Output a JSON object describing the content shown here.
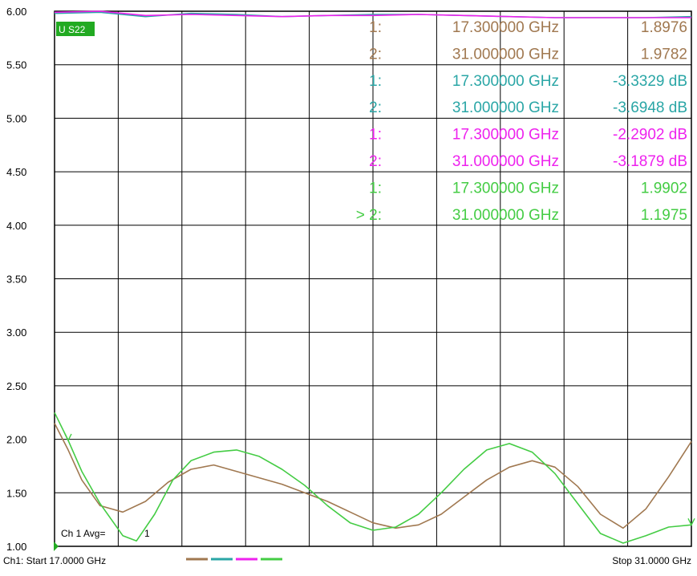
{
  "chart_data": {
    "type": "line",
    "title": "",
    "xlabel": "",
    "ylabel": "",
    "x_unit": "GHz",
    "xlim": [
      17.0,
      31.0
    ],
    "ylim": [
      1.0,
      6.0
    ],
    "grid": true,
    "ytick_labels": [
      "1.00",
      "1.50",
      "2.00",
      "2.50",
      "3.00",
      "3.50",
      "4.00",
      "4.50",
      "5.00",
      "5.50",
      "6.00"
    ],
    "trace_label": "U S22",
    "series": [
      {
        "color": "#a07850",
        "x": [
          17.0,
          17.3,
          17.6,
          18.0,
          18.5,
          19.0,
          19.5,
          20.0,
          20.5,
          21.0,
          21.5,
          22.0,
          22.5,
          23.0,
          23.5,
          24.0,
          24.5,
          25.0,
          25.5,
          26.0,
          26.5,
          27.0,
          27.5,
          28.0,
          28.5,
          29.0,
          29.5,
          30.0,
          30.5,
          31.0
        ],
        "y": [
          2.15,
          1.9,
          1.62,
          1.38,
          1.32,
          1.42,
          1.6,
          1.72,
          1.76,
          1.7,
          1.64,
          1.58,
          1.5,
          1.42,
          1.32,
          1.22,
          1.17,
          1.2,
          1.3,
          1.46,
          1.62,
          1.74,
          1.8,
          1.74,
          1.56,
          1.3,
          1.17,
          1.35,
          1.65,
          1.98
        ]
      },
      {
        "color": "#2aa6a6",
        "x": [
          17.0,
          18.0,
          19.0,
          20.0,
          21.0,
          22.0,
          23.0,
          24.0,
          25.0,
          26.0,
          27.0,
          28.0,
          29.0,
          30.0,
          31.0
        ],
        "y": [
          5.98,
          5.99,
          5.95,
          5.98,
          5.97,
          5.95,
          5.96,
          5.97,
          5.97,
          5.96,
          5.95,
          5.94,
          5.94,
          5.94,
          5.95
        ]
      },
      {
        "color": "#ee22ee",
        "x": [
          17.0,
          18.0,
          19.0,
          20.0,
          21.0,
          22.0,
          23.0,
          24.0,
          25.0,
          26.0,
          27.0,
          28.0,
          29.0,
          30.0,
          31.0
        ],
        "y": [
          5.99,
          6.0,
          5.96,
          5.97,
          5.96,
          5.95,
          5.96,
          5.96,
          5.97,
          5.96,
          5.95,
          5.94,
          5.94,
          5.94,
          5.94
        ]
      },
      {
        "color": "#44cc44",
        "x": [
          17.0,
          17.3,
          17.6,
          18.0,
          18.5,
          18.8,
          19.2,
          19.6,
          20.0,
          20.5,
          21.0,
          21.5,
          22.0,
          22.5,
          23.0,
          23.5,
          24.0,
          24.5,
          25.0,
          25.5,
          26.0,
          26.5,
          27.0,
          27.5,
          28.0,
          28.5,
          29.0,
          29.5,
          30.0,
          30.5,
          31.0
        ],
        "y": [
          2.25,
          1.99,
          1.7,
          1.4,
          1.1,
          1.05,
          1.3,
          1.62,
          1.8,
          1.88,
          1.9,
          1.84,
          1.72,
          1.57,
          1.38,
          1.22,
          1.15,
          1.18,
          1.3,
          1.5,
          1.72,
          1.9,
          1.96,
          1.88,
          1.68,
          1.4,
          1.12,
          1.03,
          1.1,
          1.18,
          1.2
        ]
      }
    ],
    "markers": [
      {
        "num": "1:",
        "freq": "17.300000 GHz",
        "value": "1.8976",
        "color": "#a07850"
      },
      {
        "num": "2:",
        "freq": "31.000000 GHz",
        "value": "1.9782",
        "color": "#a07850"
      },
      {
        "num": "1:",
        "freq": "17.300000 GHz",
        "value": "-3.3329 dB",
        "color": "#2aa6a6"
      },
      {
        "num": "2:",
        "freq": "31.000000 GHz",
        "value": "-3.6948 dB",
        "color": "#2aa6a6"
      },
      {
        "num": "1:",
        "freq": "17.300000 GHz",
        "value": "-2.2902 dB",
        "color": "#ee22ee"
      },
      {
        "num": "2:",
        "freq": "31.000000 GHz",
        "value": "-3.1879 dB",
        "color": "#ee22ee"
      },
      {
        "num": "1:",
        "freq": "17.300000 GHz",
        "value": "1.9902",
        "color": "#44cc44"
      },
      {
        "num": "> 2:",
        "freq": "31.000000 GHz",
        "value": "1.1975",
        "color": "#44cc44"
      }
    ],
    "avg_label": "Ch 1 Avg=",
    "avg_value": "1",
    "footer": {
      "start": "Ch1: Start  17.0000 GHz",
      "stop": "Stop  31.0000 GHz"
    },
    "active_marker_color": "#22aa22"
  }
}
